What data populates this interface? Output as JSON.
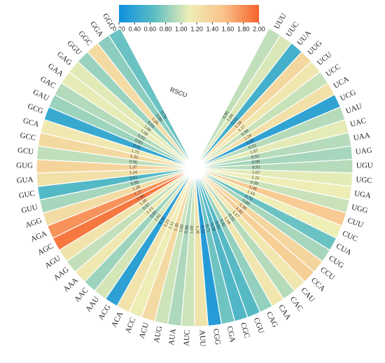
{
  "chart_data": {
    "type": "radial-heat-bar",
    "title": "RSCU",
    "categories": [
      "UUU",
      "UUC",
      "UUA",
      "UUG",
      "UCU",
      "UCC",
      "UCA",
      "UCG",
      "UAU",
      "UAC",
      "UAA",
      "UAG",
      "UGU",
      "UGC",
      "UGA",
      "UGG",
      "CUU",
      "CUC",
      "CUA",
      "CUG",
      "CCU",
      "CCA",
      "CAU",
      "CAC",
      "CAA",
      "CAG",
      "CGU",
      "CGC",
      "CGA",
      "CGG",
      "AUU",
      "AUC",
      "AUA",
      "AUG",
      "ACU",
      "ACC",
      "ACA",
      "ACG",
      "AAU",
      "AAC",
      "AAA",
      "AAG",
      "AGU",
      "AGC",
      "AGA",
      "AGG",
      "GUU",
      "GUC",
      "GUA",
      "GUG",
      "GCU",
      "GCC",
      "GCA",
      "GCG",
      "GAU",
      "GAC",
      "GAA",
      "GAG",
      "GGU",
      "GGC",
      "GGA",
      "GGG"
    ],
    "values": [
      0.96,
      1.04,
      0.52,
      1.34,
      1.17,
      0.98,
      1.24,
      0.4,
      0.93,
      1.07,
      0.93,
      0.88,
      0.93,
      1.07,
      1.11,
      0.99,
      1.46,
      1.1,
      0.7,
      0.88,
      1.36,
      1.42,
      1.17,
      0.93,
      1.18,
      0.82,
      0.62,
      0.59,
      0.71,
      0.33,
      1.2,
      1.0,
      0.9,
      1.0,
      1.3,
      1.11,
      1.21,
      0.38,
      1.02,
      0.85,
      1.15,
      0.97,
      1.2,
      1.9,
      1.77,
      1.28,
      0.88,
      0.61,
      1.24,
      1.37,
      0.96,
      1.32,
      1.15,
      0.45,
      0.85,
      0.92,
      1.08,
      1.06,
      0.84,
      1.29,
      0.8,
      0.7
    ],
    "value_labels": [
      "0.96",
      "1.04",
      "0.52",
      "1.34",
      "1.17",
      "0.98",
      "1.24",
      "0.40",
      "0.93",
      "1.07",
      "0.93",
      "0.88",
      "0.93",
      "1.07",
      "1.11",
      "0.99",
      "1.46",
      "1.10",
      "0.70",
      "0.88",
      "1.36",
      "1.42",
      "1.17",
      "0.93",
      "1.18",
      "0.82",
      "0.62",
      "0.59",
      "0.71",
      "0.33",
      "1.20",
      "1.00",
      "0.90",
      "1.00",
      "1.30",
      "1.11",
      "1.21",
      "0.38",
      "1.02",
      "0.85",
      "1.15",
      "0.97",
      "1.20",
      "1.90",
      "1.77",
      "1.28",
      "0.88",
      "0.61",
      "1.24",
      "1.37",
      "0.96",
      "1.32",
      "1.15",
      "0.45",
      "0.85",
      "0.92",
      "1.08",
      "1.06",
      "0.84",
      "1.29",
      "0.80",
      "0.70"
    ],
    "clim": [
      0.2,
      2.0
    ],
    "cticks": [
      {
        "value": 0.2,
        "label": "0.20"
      },
      {
        "value": 0.4,
        "label": "0.40"
      },
      {
        "value": 0.6,
        "label": "0.60"
      },
      {
        "value": 0.8,
        "label": "0.80"
      },
      {
        "value": 1.0,
        "label": "1.00"
      },
      {
        "value": 1.2,
        "label": "1.20"
      },
      {
        "value": 1.4,
        "label": "1.40"
      },
      {
        "value": 1.6,
        "label": "1.60"
      },
      {
        "value": 1.8,
        "label": "1.80"
      },
      {
        "value": 2.0,
        "label": "2.00"
      }
    ],
    "colorscale": [
      "#0f8fe0",
      "#5bbdc3",
      "#eeeeb6",
      "#f9c28a",
      "#f5622a"
    ]
  }
}
